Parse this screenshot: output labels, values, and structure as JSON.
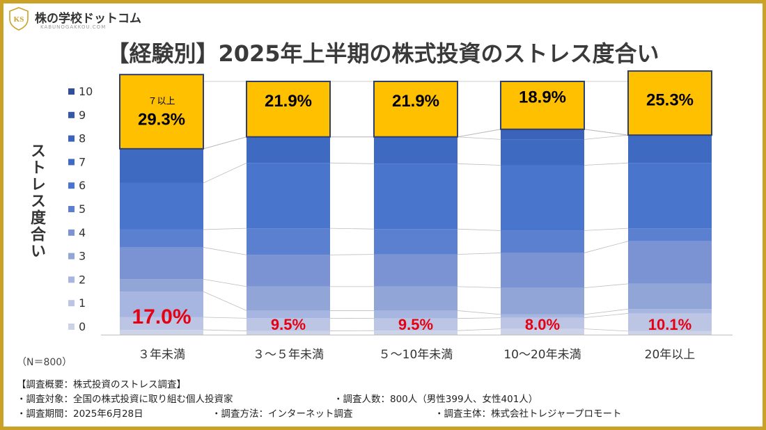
{
  "logo": {
    "mark": "KS",
    "name": "株の学校ドットコム",
    "url": "KABUNOGAKKOU.COM"
  },
  "title": "【経験別】2025年上半期の株式投資のストレス度合い",
  "sample_size": "（N＝800）",
  "survey": {
    "heading": "【調査概要：株式投資のストレス調査】",
    "target": "・調査対象：全国の株式投資に取り組む個人投資家",
    "count": "・調査人数：800人（男性399人、女性401人）",
    "period": "・調査期間：2025年6月28日",
    "method": "・調査方法：インターネット調査",
    "host": "・調査主体：株式会社トレジャープロモート"
  },
  "colors": {
    "frame": "#c9a227",
    "top_segment": "#ffc000",
    "top_border": "#2e3f6e",
    "high_label": "#000000",
    "low_label": "#e60012"
  },
  "chart_data": {
    "type": "bar",
    "stacked": true,
    "percent_stacked": true,
    "title": "【経験別】2025年上半期の株式投資のストレス度合い",
    "ylabel": "ストレス度合い",
    "xlabel": "",
    "categories": [
      "３年未満",
      "３～５年未満",
      "５～10年未満",
      "10～20年未満",
      "20年以上"
    ],
    "ylim": [
      0,
      100
    ],
    "legend": {
      "placement": "left",
      "entries": [
        "0",
        "1",
        "2",
        "3",
        "4",
        "5",
        "6",
        "7",
        "8",
        "9",
        "10"
      ],
      "colors": [
        "#ccd3e8",
        "#bcc6e4",
        "#a6b6e0",
        "#91a5d6",
        "#7b93d2",
        "#5b80d0",
        "#4a75cc",
        "#3f6ac2",
        "#3a63b9",
        "#3558a8",
        "#2f4f98"
      ]
    },
    "series": [
      {
        "name": "0",
        "values": [
          1.9,
          1.5,
          1.6,
          2.3,
          1.4
        ]
      },
      {
        "name": "1",
        "values": [
          5.0,
          5.0,
          4.8,
          4.4,
          7.0
        ]
      },
      {
        "name": "2",
        "values": [
          10.1,
          3.0,
          3.1,
          1.3,
          1.7
        ]
      },
      {
        "name": "3",
        "values": [
          4.9,
          9.5,
          9.5,
          10.5,
          10.0
        ]
      },
      {
        "name": "4",
        "values": [
          12.6,
          12.5,
          12.7,
          13.8,
          16.8
        ]
      },
      {
        "name": "5",
        "values": [
          7.0,
          10.5,
          10.0,
          8.8,
          5.1
        ]
      },
      {
        "name": "6",
        "values": [
          18.4,
          25.8,
          25.8,
          25.8,
          25.8
        ]
      },
      {
        "name": "7",
        "values": [
          13.5,
          10.3,
          10.6,
          10.2,
          11.0
        ]
      },
      {
        "name": "8",
        "values": [
          0,
          0,
          0,
          4.0,
          0
        ]
      },
      {
        "name": "9",
        "values": [
          0,
          0,
          0,
          0,
          0
        ]
      },
      {
        "name": "10",
        "values": [
          0,
          0,
          0,
          0,
          0
        ]
      },
      {
        "name": "7以上",
        "values": [
          29.3,
          21.9,
          21.9,
          18.9,
          25.3
        ]
      }
    ],
    "annotations": [
      {
        "category": "３年未満",
        "top_caption": "７以上",
        "top_value": "29.3%",
        "bottom_value": "17.0%"
      },
      {
        "category": "３～５年未満",
        "top_value": "21.9%",
        "bottom_value": "9.5%"
      },
      {
        "category": "５～10年未満",
        "top_value": "21.9%",
        "bottom_value": "9.5%"
      },
      {
        "category": "10～20年未満",
        "top_value": "18.9%",
        "bottom_value": "8.0%"
      },
      {
        "category": "20年以上",
        "top_value": "25.3%",
        "bottom_value": "10.1%"
      }
    ],
    "grid": false
  }
}
